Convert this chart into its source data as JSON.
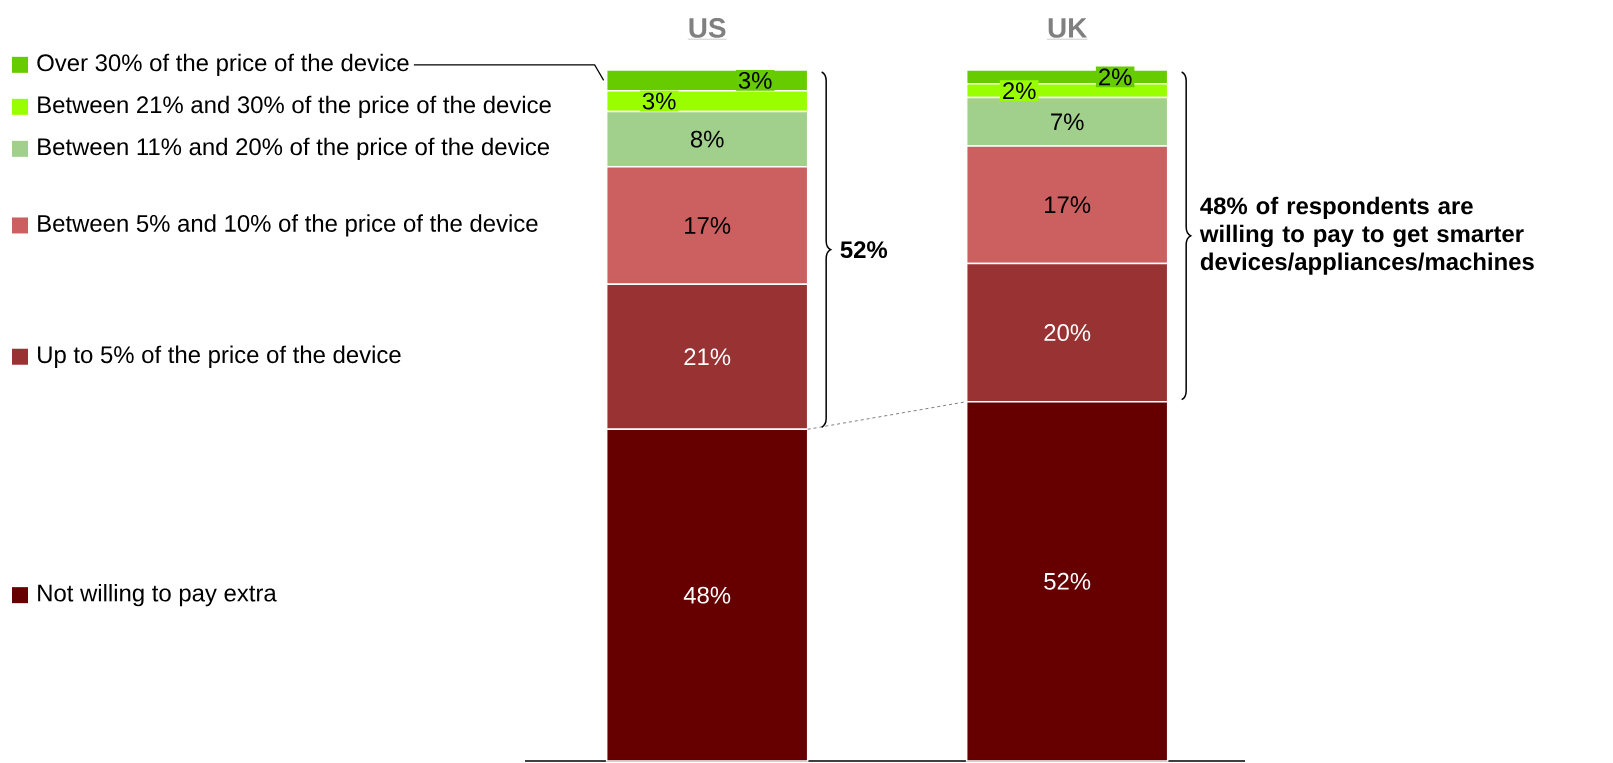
{
  "chart_data": {
    "type": "bar",
    "stacked": true,
    "legend": "left",
    "categories": [
      "US",
      "UK"
    ],
    "series": [
      {
        "name": "Not willing to pay extra",
        "color": "#660000",
        "values": [
          48,
          52
        ],
        "value_labels": [
          "48%",
          "52%"
        ]
      },
      {
        "name": "Up to 5% of the price of the device",
        "color": "#993333",
        "values": [
          21,
          20
        ],
        "value_labels": [
          "21%",
          "20%"
        ]
      },
      {
        "name": "Between 5% and 10% of the price of the device",
        "color": "#cc6060",
        "values": [
          17,
          17
        ],
        "value_labels": [
          "17%",
          "17%"
        ]
      },
      {
        "name": "Between 11% and 20% of the price of the device",
        "color": "#a0d08c",
        "values": [
          8,
          7
        ],
        "value_labels": [
          "8%",
          "7%"
        ]
      },
      {
        "name": "Between 21% and 30% of the price of the device",
        "color": "#99ff00",
        "values": [
          3,
          2
        ],
        "value_labels": [
          "3%",
          "2%"
        ]
      },
      {
        "name": "Over 30% of the price of the device",
        "color": "#66cc00",
        "values": [
          3,
          2
        ],
        "value_labels": [
          "3%",
          "2%"
        ]
      }
    ],
    "annotations": [
      "52%",
      "48% of respondents are willing to pay to get smarter devices/appliances/machines"
    ]
  }
}
